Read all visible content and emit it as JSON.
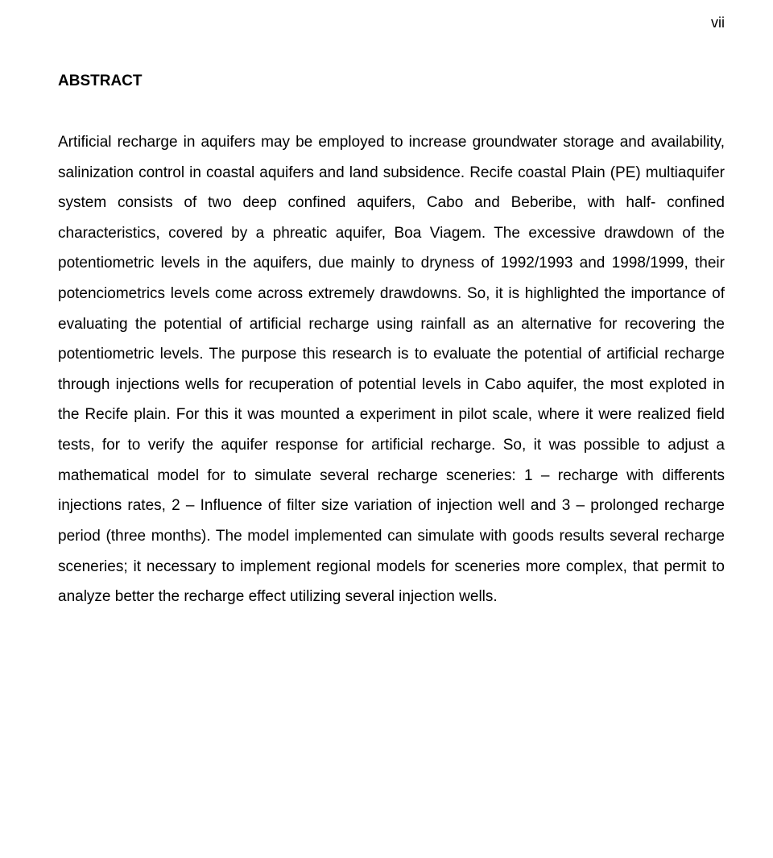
{
  "page_number": "vii",
  "heading": "ABSTRACT",
  "body": "Artificial recharge in aquifers may be employed to increase groundwater storage and availability, salinization control in coastal aquifers and land subsidence. Recife coastal Plain (PE) multiaquifer system consists of two deep confined aquifers, Cabo and Beberibe, with half- confined characteristics, covered by a phreatic aquifer, Boa Viagem. The excessive drawdown of the potentiometric levels in the aquifers, due mainly to dryness of 1992/1993 and 1998/1999, their potenciometrics levels come across extremely drawdowns. So, it is highlighted the importance of evaluating the potential of artificial recharge using rainfall as an alternative for recovering the potentiometric levels. The purpose this research is to evaluate the potential of artificial recharge through injections wells for recuperation of potential levels in Cabo aquifer, the most exploted in the Recife plain. For this it was mounted a experiment in pilot scale, where it were realized field tests, for to verify the aquifer response for artificial recharge. So, it was possible to adjust a mathematical model for to simulate several recharge sceneries: 1 – recharge with differents injections rates, 2 – Influence of filter size variation of injection well and 3 – prolonged recharge period (three months). The model implemented can simulate with goods results several recharge sceneries; it necessary to implement regional models for sceneries more complex, that permit to analyze better the recharge effect utilizing several injection wells."
}
